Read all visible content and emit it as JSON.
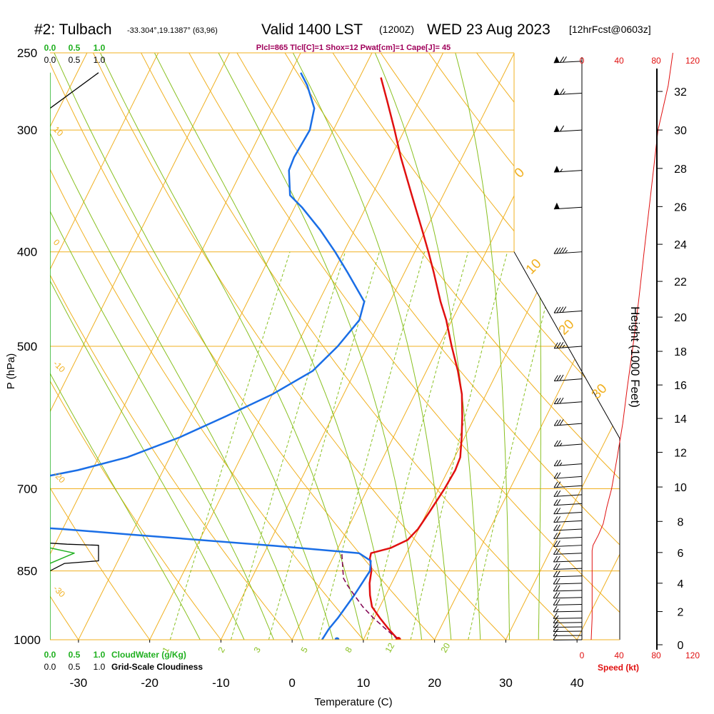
{
  "header": {
    "station_id": "#2: Tulbach",
    "coords": "-33.304°,19.1387° (63,96)",
    "valid": "Valid 1400 LST",
    "zulu": "(1200Z)",
    "date": "WED 23 Aug 2023",
    "forecast": "[12hrFcst@0603z]",
    "indices": "Plcl=865 Tlcl[C]=1 Shox=12 Pwat[cm]=1 Cape[J]= 45"
  },
  "colors": {
    "temperature": "#e01010",
    "dewpoint": "#1a6ee6",
    "parcel": "#800050",
    "isotherm": "#f0b020",
    "dry_adiabat": "#f0b020",
    "moist_adiabat": "#88c020",
    "mixing_ratio": "#88c020",
    "cloud_water": "#20b020",
    "wind_speed": "#e01010",
    "indices": "#a0005a"
  },
  "cloud_scales": {
    "cloud_water_ticks": [
      "0.0",
      "0.5",
      "1.0"
    ],
    "cloudiness_ticks": [
      "0.0",
      "0.5",
      "1.0"
    ],
    "cloud_water_label": "CloudWater (g/Kg)",
    "cloudiness_label": "Grid-Scale Cloudiness"
  },
  "speed_axis": {
    "ticks": [
      "0",
      "40",
      "80",
      "120"
    ],
    "label": "Speed (kt)"
  },
  "chart_data": {
    "type": "line",
    "subtype": "skew-T log-P sounding",
    "xlabel": "Temperature (C)",
    "ylabel": "P (hPa)",
    "y2label": "Height (1000 Feet)",
    "x_ticks": [
      "-30",
      "-20",
      "-10",
      "0",
      "10",
      "20",
      "30",
      "40"
    ],
    "y_ticks": [
      "250",
      "300",
      "400",
      "500",
      "700",
      "850",
      "1000"
    ],
    "y2_ticks": [
      "0",
      "2",
      "4",
      "6",
      "8",
      "10",
      "12",
      "14",
      "16",
      "18",
      "20",
      "22",
      "24",
      "26",
      "28",
      "30",
      "32"
    ],
    "p_range": [
      1000,
      250
    ],
    "t_range_at_1000hPa": [
      -34,
      46
    ],
    "y_scale": "log",
    "isotherm_labels": [
      "0",
      "10",
      "20",
      "30"
    ],
    "dry_adiabat_labels": [
      "10",
      "0",
      "-10",
      "-20",
      "-30"
    ],
    "mixing_ratio_labels": [
      "1",
      "2",
      "3",
      "5",
      "8",
      "12",
      "20"
    ],
    "series": [
      {
        "key": "temperature",
        "points": [
          [
            1000,
            14.9
          ],
          [
            975,
            12.8
          ],
          [
            950,
            10.8
          ],
          [
            925,
            8.9
          ],
          [
            900,
            7.8
          ],
          [
            875,
            6.9
          ],
          [
            850,
            6.3
          ],
          [
            825,
            5.2
          ],
          [
            815,
            5.0
          ],
          [
            805,
            7.4
          ],
          [
            790,
            9.2
          ],
          [
            770,
            9.9
          ],
          [
            740,
            10.3
          ],
          [
            700,
            10.8
          ],
          [
            670,
            11.0
          ],
          [
            650,
            10.8
          ],
          [
            620,
            9.6
          ],
          [
            590,
            8.2
          ],
          [
            560,
            6.6
          ],
          [
            530,
            4.4
          ],
          [
            500,
            1.8
          ],
          [
            470,
            -0.8
          ],
          [
            450,
            -2.9
          ],
          [
            420,
            -5.9
          ],
          [
            400,
            -8.1
          ],
          [
            380,
            -10.5
          ],
          [
            350,
            -14.4
          ],
          [
            320,
            -18.6
          ],
          [
            300,
            -21.4
          ],
          [
            280,
            -24.5
          ],
          [
            265,
            -27.0
          ]
        ]
      },
      {
        "key": "dewpoint",
        "points": [
          [
            1000,
            4.2
          ],
          [
            975,
            4.4
          ],
          [
            950,
            4.9
          ],
          [
            900,
            5.6
          ],
          [
            850,
            6.1
          ],
          [
            830,
            5.5
          ],
          [
            815,
            3.3
          ],
          [
            800,
            -10
          ],
          [
            780,
            -30
          ],
          [
            770,
            -40
          ],
          [
            760,
            -52
          ],
          [
            700,
            -55
          ],
          [
            690,
            -50
          ],
          [
            670,
            -42
          ],
          [
            650,
            -36
          ],
          [
            620,
            -30
          ],
          [
            590,
            -25
          ],
          [
            560,
            -20
          ],
          [
            530,
            -16
          ],
          [
            500,
            -14.2
          ],
          [
            470,
            -13.0
          ],
          [
            450,
            -13.6
          ],
          [
            420,
            -18.0
          ],
          [
            400,
            -21.2
          ],
          [
            380,
            -24.8
          ],
          [
            360,
            -29.0
          ],
          [
            350,
            -31.5
          ],
          [
            330,
            -33.4
          ],
          [
            320,
            -33.6
          ],
          [
            300,
            -33.3
          ],
          [
            285,
            -34.2
          ],
          [
            270,
            -36.8
          ],
          [
            262,
            -38.6
          ]
        ]
      },
      {
        "key": "parcel",
        "points": [
          [
            1000,
            14.9
          ],
          [
            975,
            12.4
          ],
          [
            950,
            9.9
          ],
          [
            925,
            7.6
          ],
          [
            900,
            5.6
          ],
          [
            880,
            4.0
          ],
          [
            865,
            2.9
          ],
          [
            850,
            2.3
          ],
          [
            830,
            1.5
          ],
          [
            815,
            0.9
          ]
        ]
      }
    ],
    "cloud_water_profile": [
      [
        835,
        0
      ],
      [
        815,
        0.5
      ],
      [
        805,
        0
      ]
    ],
    "cloudiness_profile": [
      [
        850,
        0
      ],
      [
        835,
        0.3
      ],
      [
        830,
        1.0
      ],
      [
        800,
        1.0
      ],
      [
        798,
        0.35
      ],
      [
        796,
        0
      ]
    ],
    "upper_cloudiness_profile": [
      [
        285,
        0
      ],
      [
        262,
        1.0
      ]
    ],
    "winds": [
      {
        "p": 1000,
        "speed_kt": 12,
        "dir_deg": 275
      },
      {
        "p": 990,
        "speed_kt": 14,
        "dir_deg": 276
      },
      {
        "p": 980,
        "speed_kt": 15,
        "dir_deg": 278
      },
      {
        "p": 970,
        "speed_kt": 16,
        "dir_deg": 279
      },
      {
        "p": 960,
        "speed_kt": 17,
        "dir_deg": 280
      },
      {
        "p": 950,
        "speed_kt": 18,
        "dir_deg": 281
      },
      {
        "p": 935,
        "speed_kt": 19,
        "dir_deg": 282
      },
      {
        "p": 920,
        "speed_kt": 20,
        "dir_deg": 283
      },
      {
        "p": 905,
        "speed_kt": 20,
        "dir_deg": 284
      },
      {
        "p": 890,
        "speed_kt": 21,
        "dir_deg": 286
      },
      {
        "p": 875,
        "speed_kt": 21,
        "dir_deg": 288
      },
      {
        "p": 860,
        "speed_kt": 22,
        "dir_deg": 290
      },
      {
        "p": 845,
        "speed_kt": 22,
        "dir_deg": 292
      },
      {
        "p": 830,
        "speed_kt": 22,
        "dir_deg": 294
      },
      {
        "p": 815,
        "speed_kt": 22,
        "dir_deg": 296
      },
      {
        "p": 800,
        "speed_kt": 21,
        "dir_deg": 298
      },
      {
        "p": 785,
        "speed_kt": 21,
        "dir_deg": 300
      },
      {
        "p": 770,
        "speed_kt": 21,
        "dir_deg": 302
      },
      {
        "p": 755,
        "speed_kt": 21,
        "dir_deg": 304
      },
      {
        "p": 740,
        "speed_kt": 21,
        "dir_deg": 306
      },
      {
        "p": 725,
        "speed_kt": 20,
        "dir_deg": 308
      },
      {
        "p": 710,
        "speed_kt": 21,
        "dir_deg": 310
      },
      {
        "p": 695,
        "speed_kt": 22,
        "dir_deg": 312
      },
      {
        "p": 680,
        "speed_kt": 23,
        "dir_deg": 314
      },
      {
        "p": 660,
        "speed_kt": 25,
        "dir_deg": 316
      },
      {
        "p": 630,
        "speed_kt": 28,
        "dir_deg": 318
      },
      {
        "p": 600,
        "speed_kt": 30,
        "dir_deg": 318
      },
      {
        "p": 570,
        "speed_kt": 32,
        "dir_deg": 318
      },
      {
        "p": 540,
        "speed_kt": 34,
        "dir_deg": 318
      },
      {
        "p": 500,
        "speed_kt": 37,
        "dir_deg": 316
      },
      {
        "p": 460,
        "speed_kt": 41,
        "dir_deg": 314
      },
      {
        "p": 400,
        "speed_kt": 47,
        "dir_deg": 312
      },
      {
        "p": 360,
        "speed_kt": 52,
        "dir_deg": 310
      },
      {
        "p": 330,
        "speed_kt": 56,
        "dir_deg": 310
      },
      {
        "p": 300,
        "speed_kt": 62,
        "dir_deg": 308
      },
      {
        "p": 275,
        "speed_kt": 68,
        "dir_deg": 306
      },
      {
        "p": 255,
        "speed_kt": 72,
        "dir_deg": 305
      }
    ],
    "wind_speed_profile": [
      [
        1000,
        10
      ],
      [
        950,
        11
      ],
      [
        900,
        11
      ],
      [
        850,
        11
      ],
      [
        810,
        11
      ],
      [
        800,
        12
      ],
      [
        780,
        18
      ],
      [
        760,
        23
      ],
      [
        730,
        27
      ],
      [
        700,
        32
      ],
      [
        650,
        38
      ],
      [
        600,
        44
      ],
      [
        550,
        49
      ],
      [
        500,
        55
      ],
      [
        450,
        61
      ],
      [
        400,
        67
      ],
      [
        350,
        74
      ],
      [
        300,
        82
      ],
      [
        270,
        93
      ],
      [
        250,
        98
      ]
    ],
    "height_profile": [
      [
        1000,
        0.3
      ],
      [
        975,
        1.0
      ],
      [
        950,
        1.6
      ],
      [
        925,
        2.3
      ],
      [
        900,
        3.2
      ],
      [
        875,
        4.0
      ],
      [
        850,
        4.8
      ],
      [
        825,
        5.6
      ],
      [
        800,
        6.5
      ],
      [
        775,
        7.4
      ],
      [
        750,
        8.2
      ],
      [
        700,
        9.9
      ],
      [
        650,
        11.7
      ],
      [
        600,
        13.7
      ],
      [
        550,
        15.9
      ],
      [
        500,
        18.3
      ],
      [
        450,
        20.9
      ],
      [
        400,
        23.6
      ],
      [
        350,
        26.6
      ],
      [
        300,
        30.0
      ],
      [
        250,
        34.0
      ]
    ]
  }
}
